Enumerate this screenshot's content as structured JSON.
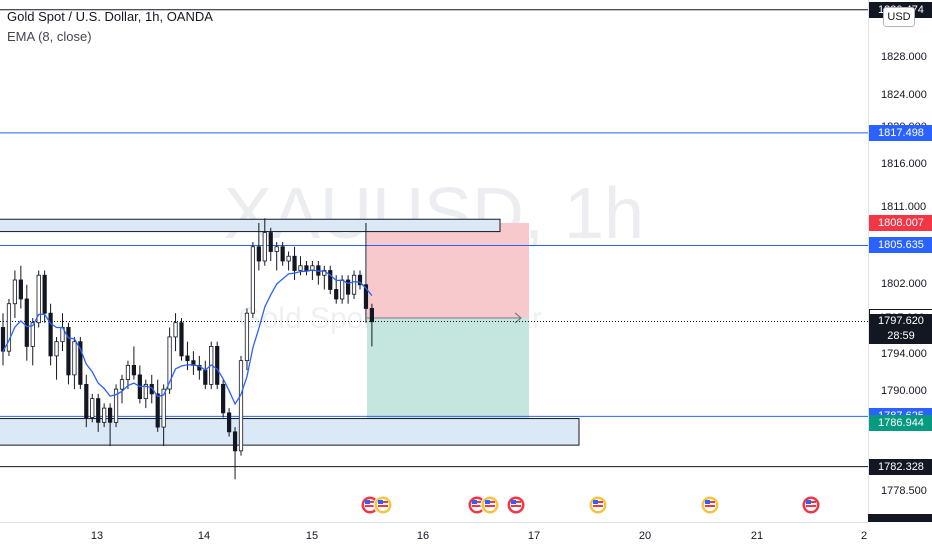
{
  "header": {
    "title": "Gold Spot / U.S. Dollar, 1h, OANDA",
    "indicator": "EMA (8, close)"
  },
  "watermark": {
    "symbol": "XAUUSD, 1h",
    "description": "Gold Spot / U.S. Dollar"
  },
  "currency": "USD",
  "countdown": "28:59",
  "price_axis": {
    "ticks": [
      "1828.000",
      "1824.000",
      "1820.000",
      "1816.000",
      "1811.000",
      "1802.000",
      "1794.000",
      "1790.000",
      "1778.500"
    ],
    "labels": [
      {
        "name": "level-1830",
        "value": "1830.474",
        "bg": "#131722",
        "fg": "#ffffff"
      },
      {
        "name": "level-1817",
        "value": "1817.498",
        "bg": "#2962ff",
        "fg": "#ffffff"
      },
      {
        "name": "stop-loss",
        "value": "1808.007",
        "bg": "#f23645",
        "fg": "#ffffff"
      },
      {
        "name": "level-1805",
        "value": "1805.635",
        "bg": "#2962ff",
        "fg": "#ffffff"
      },
      {
        "name": "entry",
        "value": "1797.999",
        "bg": "#ffffff",
        "fg": "#131722"
      },
      {
        "name": "level-1787",
        "value": "1787.625",
        "bg": "#2962ff",
        "fg": "#ffffff"
      },
      {
        "name": "take-profit",
        "value": "1786.944",
        "bg": "#089981",
        "fg": "#ffffff"
      },
      {
        "name": "level-1782",
        "value": "1782.328",
        "bg": "#131722",
        "fg": "#ffffff"
      }
    ],
    "current": "1797.620"
  },
  "time_axis": {
    "labels": [
      "13",
      "14",
      "15",
      "16",
      "17",
      "20",
      "21",
      "2"
    ]
  },
  "colors": {
    "bull": "#131722",
    "bear": "#ffffff",
    "ema": "#2962ff",
    "loss": "#f7c9cc",
    "profit": "#c5e6de",
    "zone": "#dbe8f5"
  },
  "chart_data": {
    "type": "candlestick",
    "symbol": "XAUUSD",
    "interval": "1h",
    "ylim": [
      1776.5,
      1831.5
    ],
    "horizontal_levels": [
      1830.474,
      1817.498,
      1805.635,
      1787.625,
      1782.328
    ],
    "position": {
      "side": "short",
      "entry": 1797.999,
      "stop": 1808.007,
      "target": 1786.944
    },
    "zones": [
      {
        "name": "resistance-zone",
        "low": 1807.1,
        "high": 1808.4
      },
      {
        "name": "support-zone",
        "low": 1784.6,
        "high": 1787.4
      }
    ],
    "ohlc": [
      [
        1797.0,
        1798.5,
        1793.0,
        1794.5
      ],
      [
        1794.5,
        1800.0,
        1794.0,
        1799.5
      ],
      [
        1799.5,
        1803.0,
        1798.0,
        1802.0
      ],
      [
        1802.0,
        1803.5,
        1799.0,
        1800.0
      ],
      [
        1800.0,
        1801.5,
        1793.5,
        1795.0
      ],
      [
        1795.0,
        1798.0,
        1793.0,
        1797.5
      ],
      [
        1797.5,
        1803.0,
        1797.0,
        1802.5
      ],
      [
        1802.5,
        1803.0,
        1797.5,
        1798.5
      ],
      [
        1798.5,
        1799.5,
        1793.0,
        1794.0
      ],
      [
        1794.0,
        1796.0,
        1791.5,
        1795.5
      ],
      [
        1795.5,
        1798.5,
        1794.5,
        1797.0
      ],
      [
        1797.0,
        1797.5,
        1791.0,
        1792.0
      ],
      [
        1792.0,
        1796.0,
        1790.5,
        1795.5
      ],
      [
        1795.5,
        1796.0,
        1790.5,
        1791.0
      ],
      [
        1791.0,
        1792.0,
        1786.5,
        1787.5
      ],
      [
        1787.5,
        1790.0,
        1787.0,
        1789.5
      ],
      [
        1789.5,
        1790.0,
        1786.0,
        1787.0
      ],
      [
        1787.0,
        1789.0,
        1786.5,
        1788.5
      ],
      [
        1788.5,
        1789.0,
        1784.5,
        1787.0
      ],
      [
        1787.0,
        1791.0,
        1786.5,
        1790.5
      ],
      [
        1790.5,
        1792.0,
        1789.0,
        1791.5
      ],
      [
        1791.5,
        1793.5,
        1790.5,
        1793.0
      ],
      [
        1793.0,
        1795.0,
        1791.5,
        1792.0
      ],
      [
        1792.0,
        1793.0,
        1789.0,
        1789.5
      ],
      [
        1789.5,
        1791.5,
        1788.5,
        1791.0
      ],
      [
        1791.0,
        1792.0,
        1789.0,
        1790.0
      ],
      [
        1790.0,
        1791.5,
        1786.0,
        1786.5
      ],
      [
        1786.5,
        1791.0,
        1784.5,
        1790.5
      ],
      [
        1790.5,
        1797.0,
        1790.0,
        1796.0
      ],
      [
        1796.0,
        1798.5,
        1794.5,
        1797.5
      ],
      [
        1797.5,
        1798.0,
        1793.5,
        1794.0
      ],
      [
        1794.0,
        1795.5,
        1792.5,
        1793.5
      ],
      [
        1793.5,
        1794.5,
        1792.0,
        1793.0
      ],
      [
        1793.0,
        1794.0,
        1791.5,
        1792.5
      ],
      [
        1792.5,
        1793.5,
        1790.5,
        1791.0
      ],
      [
        1791.0,
        1795.5,
        1790.5,
        1795.0
      ],
      [
        1795.0,
        1795.5,
        1790.5,
        1791.0
      ],
      [
        1791.0,
        1791.5,
        1787.5,
        1788.0
      ],
      [
        1788.0,
        1788.5,
        1785.5,
        1786.0
      ],
      [
        1786.0,
        1786.5,
        1781.0,
        1784.0
      ],
      [
        1784.0,
        1794.0,
        1783.5,
        1793.5
      ],
      [
        1793.5,
        1799.0,
        1792.5,
        1798.5
      ],
      [
        1798.5,
        1806.0,
        1798.0,
        1805.5
      ],
      [
        1805.5,
        1808.0,
        1803.0,
        1804.0
      ],
      [
        1804.0,
        1808.5,
        1803.5,
        1807.0
      ],
      [
        1807.0,
        1807.5,
        1804.0,
        1805.0
      ],
      [
        1805.0,
        1806.0,
        1803.0,
        1805.5
      ],
      [
        1805.5,
        1806.0,
        1803.5,
        1804.0
      ],
      [
        1804.0,
        1805.0,
        1803.0,
        1804.5
      ],
      [
        1804.5,
        1805.5,
        1802.0,
        1803.0
      ],
      [
        1803.0,
        1804.5,
        1802.5,
        1803.5
      ],
      [
        1803.5,
        1804.0,
        1802.5,
        1803.0
      ],
      [
        1803.0,
        1804.0,
        1802.0,
        1803.5
      ],
      [
        1803.5,
        1804.0,
        1801.5,
        1802.5
      ],
      [
        1802.5,
        1803.5,
        1801.0,
        1803.0
      ],
      [
        1803.0,
        1803.5,
        1800.5,
        1801.0
      ],
      [
        1801.0,
        1802.5,
        1799.5,
        1800.0
      ],
      [
        1800.0,
        1802.5,
        1799.5,
        1802.0
      ],
      [
        1802.0,
        1802.5,
        1799.5,
        1800.5
      ],
      [
        1800.5,
        1803.0,
        1800.0,
        1802.5
      ],
      [
        1802.5,
        1803.0,
        1801.0,
        1801.5
      ],
      [
        1801.5,
        1808.0,
        1797.5,
        1799.0
      ],
      [
        1799.0,
        1799.5,
        1795.0,
        1797.6
      ]
    ]
  }
}
